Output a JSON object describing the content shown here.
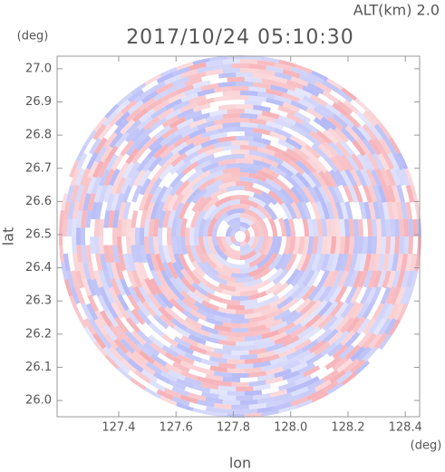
{
  "chart_data": {
    "type": "image",
    "title": "2017/10/24 05:10:30",
    "annotation": "ALT(km) 2.0",
    "xlabel": "lon",
    "ylabel": "lat",
    "xunit": "(deg)",
    "yunit": "(deg)",
    "xlim": [
      127.185,
      128.45
    ],
    "ylim": [
      25.951,
      27.038
    ],
    "xticks": [
      127.4,
      127.6,
      127.8,
      {
        "value": 128,
        "label": "128.0"
      },
      128.2,
      128.4
    ],
    "yticks": [
      {
        "value": 26,
        "label": "26.0"
      },
      26.1,
      26.2,
      26.3,
      26.4,
      26.5,
      26.6,
      26.7,
      26.8,
      26.9,
      {
        "value": 27,
        "label": "27.0"
      }
    ]
  }
}
